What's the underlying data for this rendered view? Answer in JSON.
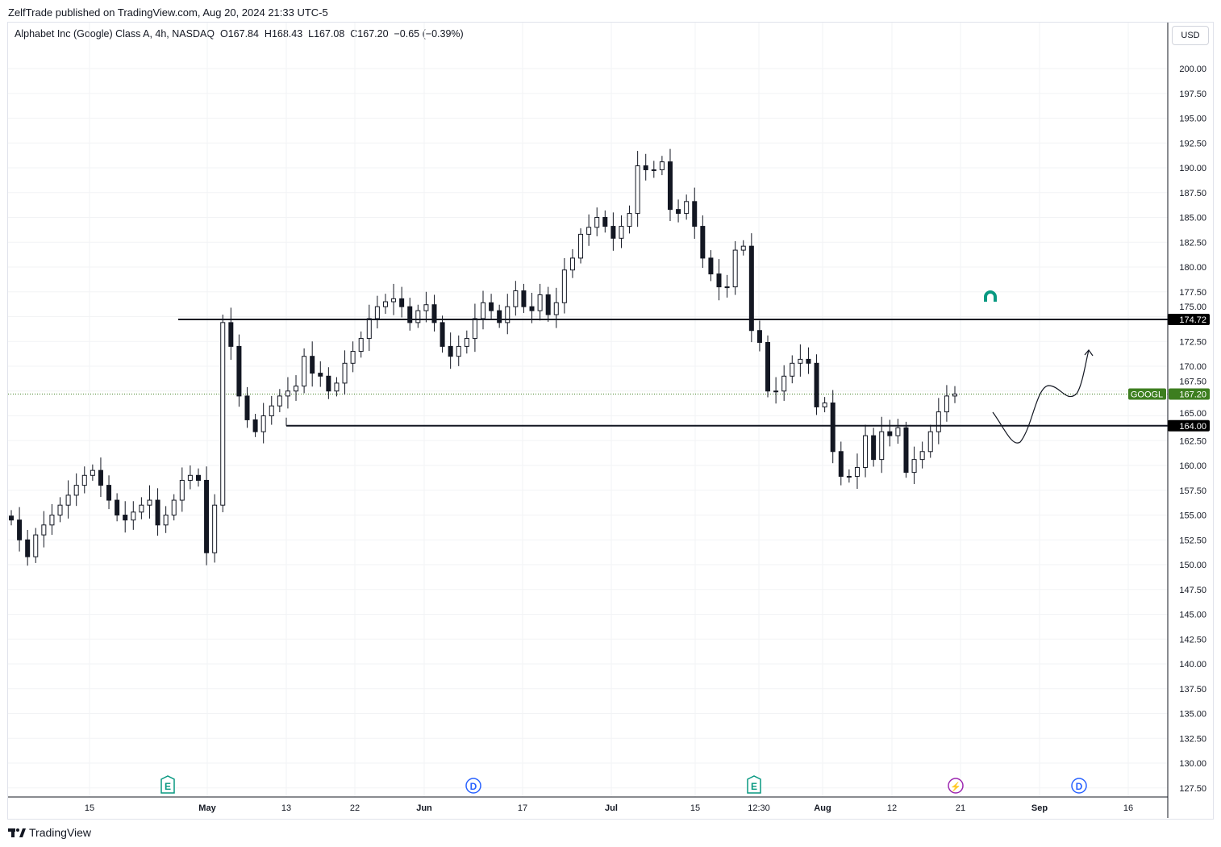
{
  "publisher_line": "ZelfTrade published on TradingView.com, Aug 20, 2024 21:33 UTC-5",
  "legend": {
    "symbol": "Alphabet Inc (Google) Class A, 4h, NASDAQ",
    "open": "O167.84",
    "high": "H168.43",
    "low": "L167.08",
    "close": "C167.20",
    "change": "−0.65 (−0.39%)"
  },
  "currency": "USD",
  "brand": "TradingView",
  "chart_data": {
    "type": "candlestick",
    "ylim": [
      126.5,
      203.5
    ],
    "price_ticks": [
      "200.00",
      "197.50",
      "195.00",
      "192.50",
      "190.00",
      "187.50",
      "185.00",
      "182.50",
      "180.00",
      "177.50",
      "175.00",
      "172.50",
      "170.00",
      "167.50",
      "165.00",
      "162.50",
      "160.00",
      "157.50",
      "155.00",
      "152.50",
      "150.00",
      "147.50",
      "145.00",
      "142.50",
      "140.00",
      "137.50",
      "135.00",
      "132.50",
      "130.00",
      "127.50"
    ],
    "time_ticks": [
      "15",
      "May",
      "13",
      "22",
      "Jun",
      "17",
      "Jul",
      "15",
      "12:30",
      "Aug",
      "12",
      "21",
      "Sep",
      "16"
    ],
    "closes": [
      154.5,
      152.5,
      150.8,
      153,
      154,
      155,
      156,
      157,
      158,
      159,
      159.5,
      158,
      156.5,
      155,
      154.5,
      155.3,
      156,
      156.5,
      154,
      155,
      156.5,
      158.5,
      159,
      158.5,
      151.2,
      156,
      174.4,
      172,
      167,
      164.6,
      163.4,
      165,
      166,
      167,
      167.5,
      168,
      171,
      169.3,
      169,
      167.5,
      168.3,
      170.3,
      171.5,
      172.8,
      174.8,
      176,
      176.5,
      176.8,
      176,
      174.4,
      175.6,
      176.2,
      174.4,
      172,
      171,
      172,
      172.8,
      174.8,
      176.4,
      175.6,
      174.4,
      176,
      177.6,
      176,
      175.6,
      177.2,
      175.2,
      176.4,
      179.7,
      180.9,
      183.3,
      184,
      185,
      184.1,
      182.9,
      184.1,
      185.4,
      190.2,
      189.8,
      189.8,
      190.6,
      185.8,
      185.4,
      186.6,
      184.1,
      180.9,
      179.3,
      178,
      178,
      181.7,
      182.1,
      173.6,
      172.4,
      167.5,
      167.5,
      169,
      170.3,
      170.7,
      170.3,
      165.9,
      166.3,
      161.4,
      158.9,
      158.9,
      159.8,
      163,
      160.6,
      163.4,
      163,
      163.8,
      159.3,
      160.6,
      161.4,
      163.4,
      165.4,
      167,
      167.2
    ],
    "last_price": {
      "symbol": "GOOGL",
      "value": "167.20",
      "color": "#3d7e1f"
    },
    "levels": [
      {
        "label": "174.72",
        "value": 174.72
      },
      {
        "label": "164.00",
        "value": 164.0
      }
    ],
    "events": [
      {
        "type": "earnings",
        "label": "E",
        "color": "#089981"
      },
      {
        "type": "dividend",
        "label": "D",
        "color": "#2962ff"
      },
      {
        "type": "earnings",
        "label": "E",
        "color": "#089981"
      },
      {
        "type": "split",
        "label": "⚡",
        "color": "#9c27b0"
      },
      {
        "type": "dividend",
        "label": "D",
        "color": "#2962ff"
      }
    ]
  }
}
